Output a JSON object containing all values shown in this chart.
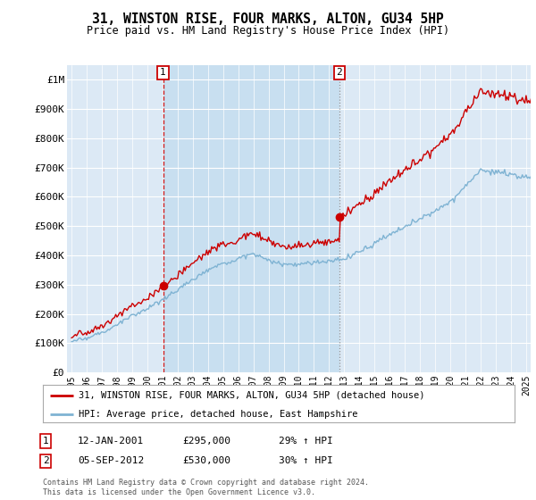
{
  "title": "31, WINSTON RISE, FOUR MARKS, ALTON, GU34 5HP",
  "subtitle": "Price paid vs. HM Land Registry's House Price Index (HPI)",
  "legend_line1": "31, WINSTON RISE, FOUR MARKS, ALTON, GU34 5HP (detached house)",
  "legend_line2": "HPI: Average price, detached house, East Hampshire",
  "annotation1_date": "12-JAN-2001",
  "annotation1_price": "£295,000",
  "annotation1_hpi": "29% ↑ HPI",
  "annotation1_year": 2001.04,
  "annotation1_value": 295000,
  "annotation2_date": "05-SEP-2012",
  "annotation2_price": "£530,000",
  "annotation2_hpi": "30% ↑ HPI",
  "annotation2_year": 2012.67,
  "annotation2_value": 530000,
  "plot_bg_color": "#dce9f5",
  "highlight_bg_color": "#c8dff0",
  "hpi_color": "#7fb3d3",
  "price_color": "#cc0000",
  "ylim": [
    0,
    1050000
  ],
  "yticks": [
    0,
    100000,
    200000,
    300000,
    400000,
    500000,
    600000,
    700000,
    800000,
    900000,
    1000000
  ],
  "ytick_labels": [
    "£0",
    "£100K",
    "£200K",
    "£300K",
    "£400K",
    "£500K",
    "£600K",
    "£700K",
    "£800K",
    "£900K",
    "£1M"
  ],
  "footer": "Contains HM Land Registry data © Crown copyright and database right 2024.\nThis data is licensed under the Open Government Licence v3.0."
}
